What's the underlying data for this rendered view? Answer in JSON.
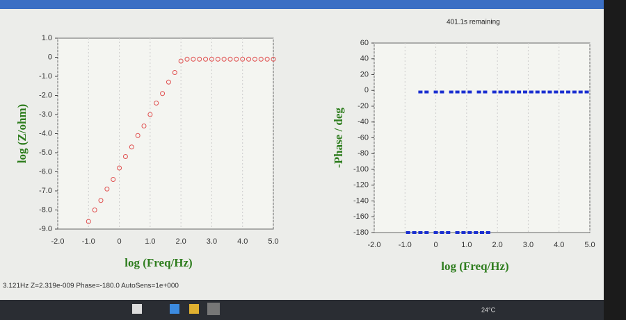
{
  "screen": {
    "remaining": "401.1s remaining",
    "status": "3.121Hz  Z=2.319e-009  Phase=-180.0  AutoSens=1e+000",
    "temperature": "24°C"
  },
  "chart_data": [
    {
      "type": "scatter",
      "ylabel": "log (Z/ohm)",
      "xlabel": "log (Freq/Hz)",
      "grid": true,
      "marker": "circle",
      "xlim": [
        -2,
        5
      ],
      "ylim": [
        -9,
        1
      ],
      "xticks": [
        {
          "value": -2,
          "label": "-2.0"
        },
        {
          "value": -1,
          "label": "-1.0"
        },
        0,
        {
          "value": 1,
          "label": "1.0"
        },
        {
          "value": 2,
          "label": "2.0"
        },
        {
          "value": 3,
          "label": "3.0"
        },
        {
          "value": 4,
          "label": "4.0"
        },
        {
          "value": 5,
          "label": "5.0"
        }
      ],
      "yticks": [
        {
          "value": 1,
          "label": "1.0"
        },
        0,
        {
          "value": -1,
          "label": "-1.0"
        },
        {
          "value": -2,
          "label": "-2.0"
        },
        {
          "value": -3,
          "label": "-3.0"
        },
        {
          "value": -4,
          "label": "-4.0"
        },
        {
          "value": -5,
          "label": "-5.0"
        },
        {
          "value": -6,
          "label": "-6.0"
        },
        {
          "value": -7,
          "label": "-7.0"
        },
        {
          "value": -8,
          "label": "-8.0"
        },
        {
          "value": -9,
          "label": "-9.0"
        }
      ],
      "series": [
        {
          "color": "#e05050",
          "x": [
            -1.0,
            -0.8,
            -0.6,
            -0.4,
            -0.2,
            0.0,
            0.2,
            0.4,
            0.6,
            0.8,
            1.0,
            1.2,
            1.4,
            1.6,
            1.8,
            2.0,
            2.2,
            2.4,
            2.6,
            2.8,
            3.0,
            3.2,
            3.4,
            3.6,
            3.8,
            4.0,
            4.2,
            4.4,
            4.6,
            4.8,
            5.0
          ],
          "values": [
            -8.6,
            -8.0,
            -7.5,
            -6.9,
            -6.4,
            -5.8,
            -5.2,
            -4.7,
            -4.1,
            -3.6,
            -3.0,
            -2.4,
            -1.9,
            -1.3,
            -0.8,
            -0.2,
            -0.1,
            -0.1,
            -0.1,
            -0.1,
            -0.1,
            -0.1,
            -0.1,
            -0.1,
            -0.1,
            -0.1,
            -0.1,
            -0.1,
            -0.1,
            -0.1,
            -0.1
          ]
        }
      ]
    },
    {
      "type": "scatter",
      "ylabel": "-Phase / deg",
      "xlabel": "log (Freq/Hz)",
      "grid": true,
      "marker": "square",
      "xlim": [
        -2,
        5
      ],
      "ylim": [
        -180,
        60
      ],
      "xticks": [
        {
          "value": -2,
          "label": "-2.0"
        },
        {
          "value": -1,
          "label": "-1.0"
        },
        0,
        {
          "value": 1,
          "label": "1.0"
        },
        {
          "value": 2,
          "label": "2.0"
        },
        {
          "value": 3,
          "label": "3.0"
        },
        {
          "value": 4,
          "label": "4.0"
        },
        {
          "value": 5,
          "label": "5.0"
        }
      ],
      "yticks": [
        60,
        40,
        20,
        0,
        -20,
        -40,
        -60,
        -80,
        -100,
        -120,
        -140,
        -160,
        -180
      ],
      "series": [
        {
          "color": "#1a2fd0",
          "x": [
            -0.5,
            -0.3,
            0.0,
            0.2,
            0.5,
            0.7,
            0.9,
            1.1,
            1.4,
            1.6,
            1.9,
            2.1,
            2.3,
            2.5,
            2.7,
            2.9,
            3.1,
            3.3,
            3.5,
            3.7,
            3.9,
            4.1,
            4.3,
            4.5,
            4.7,
            4.9
          ],
          "values": [
            -2,
            -2,
            -2,
            -2,
            -2,
            -2,
            -2,
            -2,
            -2,
            -2,
            -2,
            -2,
            -2,
            -2,
            -2,
            -2,
            -2,
            -2,
            -2,
            -2,
            -2,
            -2,
            -2,
            -2,
            -2,
            -2
          ]
        },
        {
          "color": "#1a2fd0",
          "x": [
            -0.9,
            -0.7,
            -0.5,
            -0.3,
            0.0,
            0.2,
            0.4,
            0.7,
            0.9,
            1.1,
            1.3,
            1.5,
            1.7
          ],
          "values": [
            -180,
            -180,
            -180,
            -180,
            -180,
            -180,
            -180,
            -180,
            -180,
            -180,
            -180,
            -180,
            -180
          ]
        }
      ]
    }
  ]
}
